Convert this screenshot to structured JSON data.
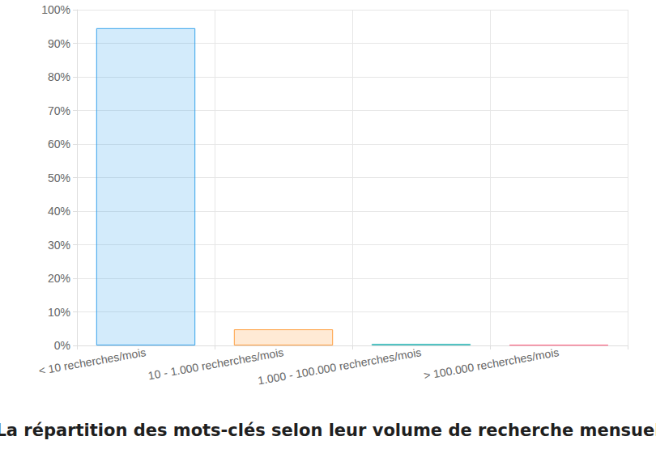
{
  "chart_data": {
    "type": "bar",
    "title": "La répartition des mots-clés selon leur volume de recherche mensuel",
    "categories": [
      "< 10 recherches/mois",
      "10 - 1.000 recherches/mois",
      "1.000 - 100.000 recherches/mois",
      "> 100.000 recherches/mois"
    ],
    "values": [
      94.5,
      4.8,
      0.5,
      0.2
    ],
    "colors": [
      "#36a2eb",
      "#ff9f40",
      "#4bc0c0",
      "#ff6384"
    ],
    "ylim": [
      0,
      100
    ],
    "yticks": [
      {
        "value": 0,
        "label": "0%"
      },
      {
        "value": 10,
        "label": "10%"
      },
      {
        "value": 20,
        "label": "20%"
      },
      {
        "value": 30,
        "label": "30%"
      },
      {
        "value": 40,
        "label": "40%"
      },
      {
        "value": 50,
        "label": "50%"
      },
      {
        "value": 60,
        "label": "60%"
      },
      {
        "value": 70,
        "label": "70%"
      },
      {
        "value": 80,
        "label": "80%"
      },
      {
        "value": 90,
        "label": "90%"
      },
      {
        "value": 100,
        "label": "100%"
      }
    ],
    "grid": true
  }
}
